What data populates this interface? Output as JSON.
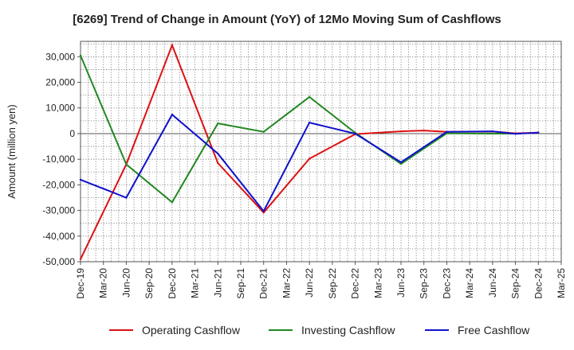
{
  "chart_data": {
    "type": "line",
    "title": "[6269]  Trend of Change in Amount (YoY) of 12Mo Moving Sum of Cashflows",
    "xlabel": "",
    "ylabel": "Amount (million yen)",
    "ylim": [
      -50000,
      36000
    ],
    "yticks": [
      -50000,
      -40000,
      -30000,
      -20000,
      -10000,
      0,
      10000,
      20000,
      30000
    ],
    "ytick_labels": [
      "-50,000",
      "-40,000",
      "-30,000",
      "-20,000",
      "-10,000",
      "0",
      "10,000",
      "20,000",
      "30,000"
    ],
    "categories": [
      "Dec-19",
      "Mar-20",
      "Jun-20",
      "Sep-20",
      "Dec-20",
      "Mar-21",
      "Jun-21",
      "Sep-21",
      "Dec-21",
      "Mar-22",
      "Jun-22",
      "Sep-22",
      "Dec-22",
      "Mar-23",
      "Jun-23",
      "Sep-23",
      "Dec-23",
      "Mar-24",
      "Jun-24",
      "Sep-24",
      "Dec-24",
      "Mar-25"
    ],
    "grid": true,
    "legend_position": "bottom",
    "series": [
      {
        "name": "Operating Cashflow",
        "color": "#dd1111",
        "values": [
          -49000,
          null,
          -12000,
          null,
          34500,
          null,
          -11500,
          null,
          -30800,
          null,
          -9800,
          null,
          -200,
          null,
          900,
          1200,
          700,
          null,
          800,
          100,
          400,
          null
        ]
      },
      {
        "name": "Investing Cashflow",
        "color": "#228822",
        "values": [
          30500,
          null,
          -12000,
          null,
          -26800,
          null,
          4000,
          null,
          700,
          null,
          14300,
          null,
          300,
          null,
          -11800,
          null,
          100,
          null,
          0,
          0,
          null,
          null
        ]
      },
      {
        "name": "Free Cashflow",
        "color": "#1111cc",
        "values": [
          -18000,
          null,
          -25000,
          null,
          7400,
          null,
          -7800,
          null,
          -30300,
          null,
          4300,
          null,
          0,
          null,
          -11200,
          null,
          700,
          null,
          900,
          -100,
          400,
          null
        ]
      }
    ]
  }
}
